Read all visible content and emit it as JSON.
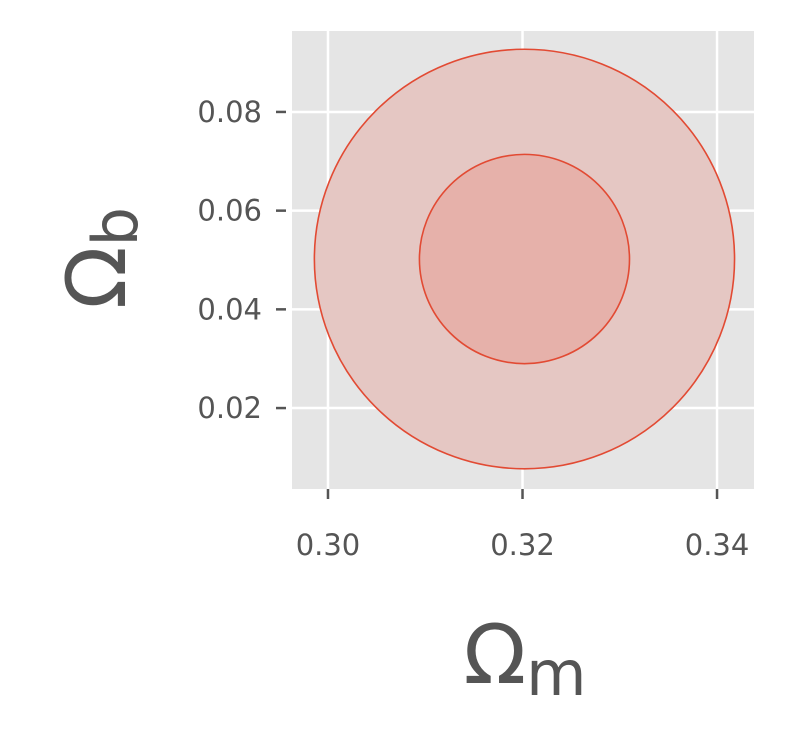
{
  "chart_data": {
    "type": "contour",
    "xlabel": "Ω",
    "xlabel_sub": "m",
    "ylabel": "Ω",
    "ylabel_sub": "b",
    "xlim": [
      0.2963,
      0.3438
    ],
    "ylim": [
      0.0036,
      0.0964
    ],
    "xticks": [
      0.3,
      0.32,
      0.34
    ],
    "xtick_labels": [
      "0.30",
      "0.32",
      "0.34"
    ],
    "yticks": [
      0.02,
      0.04,
      0.06,
      0.08
    ],
    "ytick_labels": [
      "0.02",
      "0.04",
      "0.06",
      "0.08"
    ],
    "grid": true,
    "series": [
      {
        "level": "outer",
        "center": [
          0.3202,
          0.0502
        ],
        "radius_x": 0.0216,
        "radius_y": 0.0425,
        "fill": "#e5c7c3",
        "stroke": "#e24a33"
      },
      {
        "level": "inner",
        "center": [
          0.3202,
          0.0502
        ],
        "radius_x": 0.0108,
        "radius_y": 0.0212,
        "fill": "#e6b1aa",
        "stroke": "#e24a33"
      }
    ],
    "colors": {
      "panel": "#e5e5e5",
      "grid": "#ffffff",
      "text": "#555555",
      "accent": "#e24a33"
    }
  }
}
